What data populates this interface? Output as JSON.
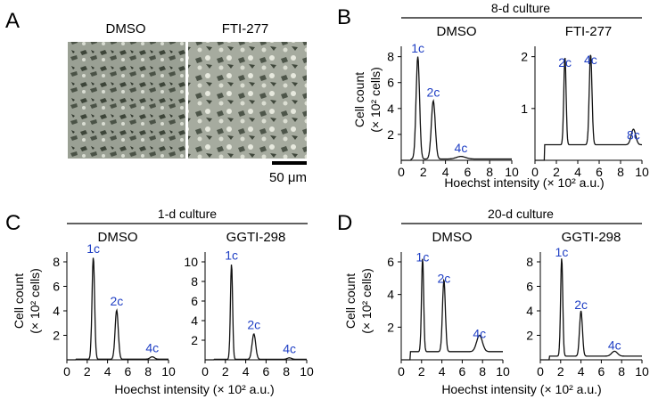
{
  "panel_a": {
    "letter": "A",
    "labels": [
      "DMSO",
      "FTI-277"
    ],
    "scale_bar": "50 μm"
  },
  "shared": {
    "x_axis_label": "Hoechst intensity (× 10² a.u.)",
    "y_axis_label_line1": "Cell count",
    "y_axis_label_line2": "(× 10² cells)",
    "colors": {
      "curve": "#111111",
      "peak_label": "#1f3fc4"
    }
  },
  "chart_data": [
    {
      "type": "line",
      "panel": "B",
      "group_title": "8-d culture",
      "subtitle": "DMSO",
      "xlim": [
        0,
        10
      ],
      "ylim": [
        0,
        8.8
      ],
      "xticks": [
        0,
        2,
        4,
        6,
        8,
        10
      ],
      "yticks": [
        2,
        4,
        6,
        8
      ],
      "peaks": [
        {
          "x": 1.5,
          "y": 7.9,
          "w": 0.22,
          "label": "1c"
        },
        {
          "x": 2.9,
          "y": 4.5,
          "w": 0.25,
          "label": "2c"
        },
        {
          "x": 5.4,
          "y": 0.2,
          "w": 0.6,
          "label": "4c"
        }
      ],
      "baseline": 0.1
    },
    {
      "type": "line",
      "panel": "B",
      "subtitle": "FTI-277",
      "xlim": [
        0,
        10
      ],
      "ylim": [
        0,
        2.2
      ],
      "xticks": [
        0,
        2,
        4,
        6,
        8,
        10
      ],
      "yticks": [
        1,
        2
      ],
      "peaks": [
        {
          "x": 2.8,
          "y": 1.7,
          "w": 0.15,
          "label": "2c"
        },
        {
          "x": 5.2,
          "y": 1.75,
          "w": 0.18,
          "label": "4c"
        },
        {
          "x": 9.2,
          "y": 0.3,
          "w": 0.3,
          "label": "8c"
        }
      ],
      "baseline": 0.3
    },
    {
      "type": "line",
      "panel": "C",
      "group_title": "1-d culture",
      "subtitle": "DMSO",
      "xlim": [
        0,
        10
      ],
      "ylim": [
        0,
        8.8
      ],
      "xticks": [
        0,
        2,
        4,
        6,
        8,
        10
      ],
      "yticks": [
        2,
        4,
        6,
        8
      ],
      "peaks": [
        {
          "x": 2.6,
          "y": 8.3,
          "w": 0.18,
          "label": "1c"
        },
        {
          "x": 4.9,
          "y": 4.0,
          "w": 0.22,
          "label": "2c"
        },
        {
          "x": 8.4,
          "y": 0.2,
          "w": 0.3,
          "label": "4c"
        }
      ],
      "baseline": 0.05
    },
    {
      "type": "line",
      "panel": "C",
      "subtitle": "GGTI-298",
      "xlim": [
        0,
        10
      ],
      "ylim": [
        0,
        11
      ],
      "xticks": [
        0,
        2,
        4,
        6,
        8,
        10
      ],
      "yticks": [
        2,
        4,
        6,
        8,
        10
      ],
      "peaks": [
        {
          "x": 2.6,
          "y": 9.7,
          "w": 0.15,
          "label": "1c"
        },
        {
          "x": 4.8,
          "y": 2.6,
          "w": 0.25,
          "label": "2c"
        },
        {
          "x": 8.3,
          "y": 0.15,
          "w": 0.3,
          "label": "4c"
        }
      ],
      "baseline": 0.05
    },
    {
      "type": "line",
      "panel": "D",
      "group_title": "20-d culture",
      "subtitle": "DMSO",
      "xlim": [
        0,
        10
      ],
      "ylim": [
        0,
        6.6
      ],
      "xticks": [
        0,
        2,
        4,
        6,
        8,
        10
      ],
      "yticks": [
        2,
        4,
        6
      ],
      "peaks": [
        {
          "x": 2.1,
          "y": 5.7,
          "w": 0.15,
          "label": "1c"
        },
        {
          "x": 4.2,
          "y": 4.4,
          "w": 0.2,
          "label": "2c"
        },
        {
          "x": 7.7,
          "y": 1.0,
          "w": 0.4,
          "label": "4c"
        }
      ],
      "baseline": 0.5
    },
    {
      "type": "line",
      "panel": "D",
      "subtitle": "GGTI-298",
      "xlim": [
        0,
        10
      ],
      "ylim": [
        0,
        8.8
      ],
      "xticks": [
        0,
        2,
        4,
        6,
        8,
        10
      ],
      "yticks": [
        2,
        4,
        6,
        8
      ],
      "peaks": [
        {
          "x": 2.1,
          "y": 8.0,
          "w": 0.15,
          "label": "1c"
        },
        {
          "x": 4.0,
          "y": 3.7,
          "w": 0.2,
          "label": "2c"
        },
        {
          "x": 7.3,
          "y": 0.4,
          "w": 0.4,
          "label": "4c"
        }
      ],
      "baseline": 0.3
    }
  ]
}
